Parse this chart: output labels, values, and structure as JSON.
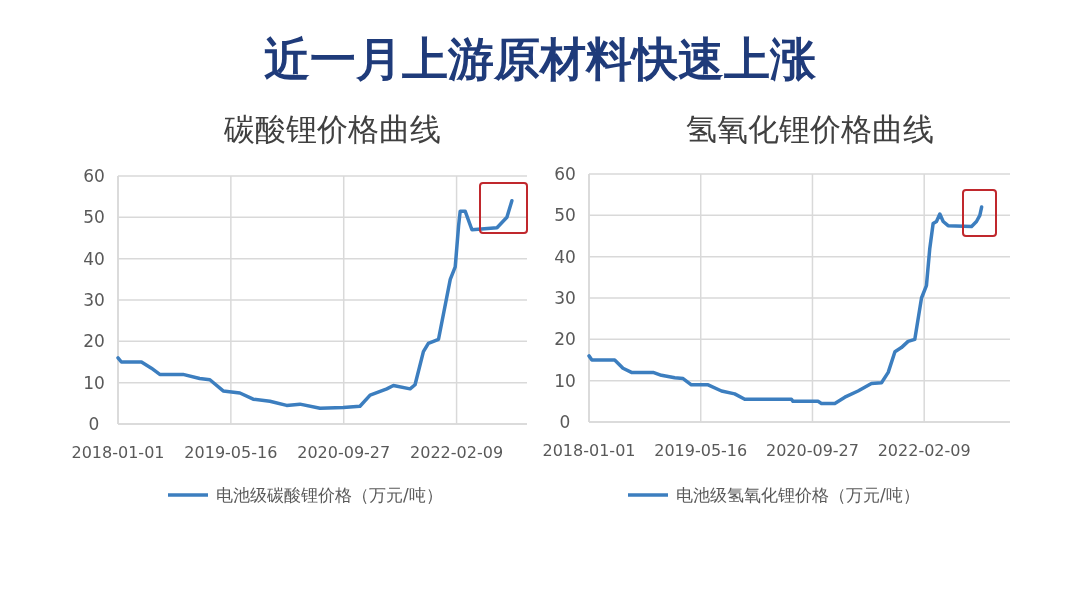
{
  "chart_data": [
    {
      "type": "line",
      "title": "碳酸锂价格曲线",
      "annotations": [
        "近一月上游原材料快速上涨"
      ],
      "legend": "bottom",
      "grid": true,
      "marker": "none",
      "xlim": [
        "2018-01-01",
        "2022-12-18"
      ],
      "xticks": [
        "2018-01-01",
        "2019-05-16",
        "2020-09-27",
        "2022-02-09"
      ],
      "ylim": [
        0,
        60
      ],
      "yticks": [
        0,
        10,
        20,
        30,
        40,
        50,
        60
      ],
      "series": [
        {
          "name": "电池级碳酸锂价格（万元/吨）",
          "color": "#3c7ebf",
          "x": [
            "2018-01-01",
            "2018-01-16",
            "2018-04-15",
            "2018-05-29",
            "2018-07-05",
            "2018-10-16",
            "2018-12-29",
            "2019-02-12",
            "2019-04-12",
            "2019-06-25",
            "2019-08-23",
            "2019-11-05",
            "2020-01-18",
            "2020-03-17",
            "2020-06-14",
            "2020-09-25",
            "2020-12-08",
            "2021-01-22",
            "2021-04-06",
            "2021-05-05",
            "2021-07-18",
            "2021-08-09",
            "2021-09-15",
            "2021-10-07",
            "2021-11-21",
            "2022-01-12",
            "2022-02-03",
            "2022-02-18",
            "2022-02-25",
            "2022-03-19",
            "2022-04-18",
            "2022-08-07",
            "2022-09-20",
            "2022-10-12"
          ],
          "values": [
            16,
            15,
            15,
            13.5,
            12,
            12,
            11,
            10.7,
            8,
            7.5,
            6,
            5.5,
            4.5,
            4.8,
            3.8,
            4,
            4.3,
            7,
            8.5,
            9.3,
            8.5,
            9.5,
            17.5,
            19.5,
            20.5,
            35,
            38,
            48,
            51.5,
            51.5,
            47,
            47.5,
            50,
            54
          ]
        }
      ]
    },
    {
      "type": "line",
      "title": "氢氧化锂价格曲线",
      "legend": "bottom",
      "grid": true,
      "marker": "none",
      "xlim": [
        "2018-01-01",
        "2023-02-28"
      ],
      "xticks": [
        "2018-01-01",
        "2019-05-16",
        "2020-09-27",
        "2022-02-09"
      ],
      "ylim": [
        0,
        60
      ],
      "yticks": [
        0,
        10,
        20,
        30,
        40,
        50,
        60
      ],
      "series": [
        {
          "name": "电池级氢氧化锂价格（万元/吨）",
          "color": "#3c7ebf",
          "x": [
            "2018-01-01",
            "2018-01-14",
            "2018-04-26",
            "2018-06-02",
            "2018-07-10",
            "2018-10-15",
            "2018-11-21",
            "2019-01-20",
            "2019-02-26",
            "2019-04-04",
            "2019-06-18",
            "2019-08-17",
            "2019-10-15",
            "2019-11-29",
            "2020-06-25",
            "2020-07-02",
            "2020-10-22",
            "2020-11-06",
            "2021-01-05",
            "2021-02-19",
            "2021-04-19",
            "2021-06-18",
            "2021-08-02",
            "2021-09-01",
            "2021-10-01",
            "2021-10-30",
            "2021-11-29",
            "2021-12-29",
            "2022-01-28",
            "2022-02-19",
            "2022-03-06",
            "2022-03-21",
            "2022-04-05",
            "2022-04-20",
            "2022-05-05",
            "2022-05-27",
            "2022-09-09",
            "2022-10-01",
            "2022-10-16",
            "2022-10-24"
          ],
          "values": [
            16,
            15,
            15,
            13,
            12,
            12,
            11.3,
            10.7,
            10.5,
            9,
            9,
            7.5,
            6.8,
            5.5,
            5.5,
            5,
            5,
            4.5,
            4.5,
            6,
            7.5,
            9.3,
            9.5,
            12,
            17,
            18,
            19.5,
            20,
            30,
            33,
            42,
            48,
            48.5,
            50.3,
            48.5,
            47.5,
            47.3,
            48.5,
            50,
            52
          ]
        }
      ]
    }
  ]
}
